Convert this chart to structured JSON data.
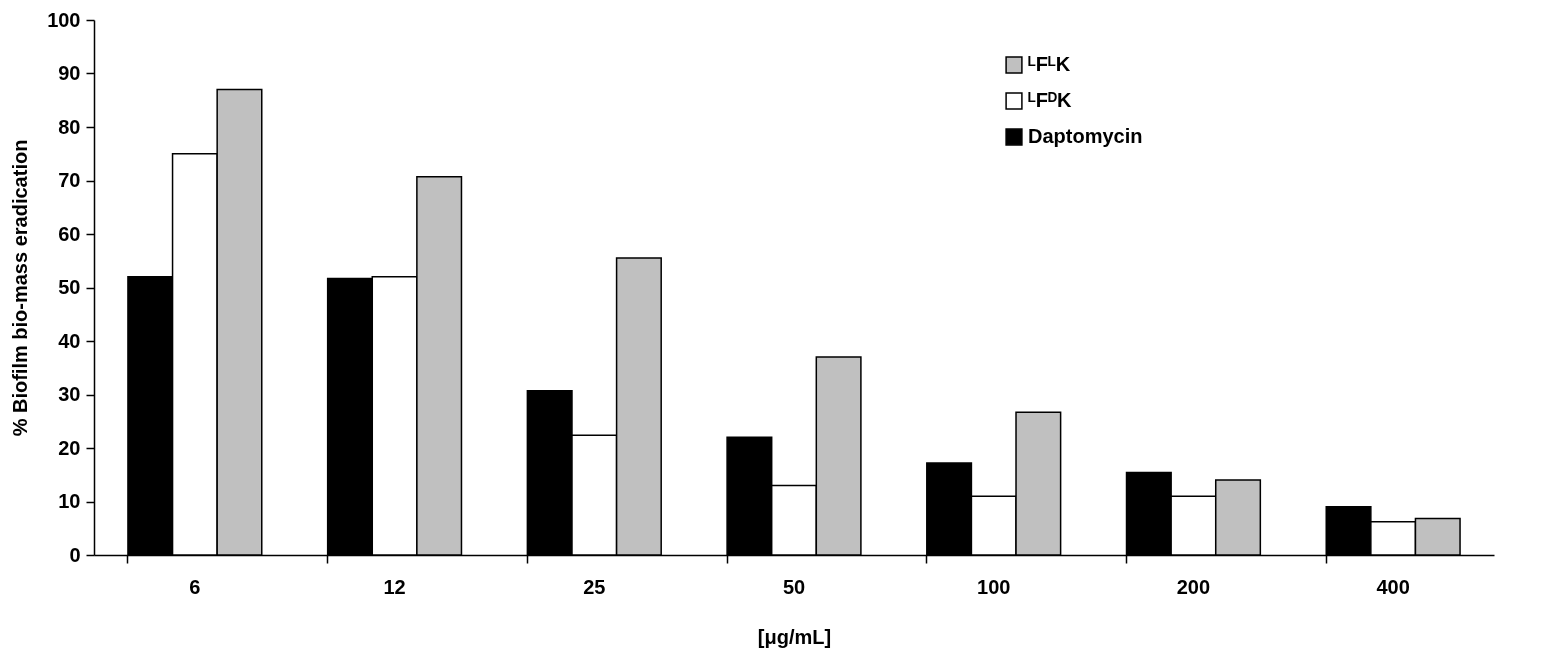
{
  "chart_data": {
    "type": "bar",
    "xlabel": "[μg/mL]",
    "ylabel": "% Biofilm bio-mass eradication",
    "categories": [
      "6",
      "12",
      "25",
      "50",
      "100",
      "200",
      "400"
    ],
    "series": [
      {
        "name": "Daptomycin",
        "color": "#000000",
        "values": [
          52,
          51.7,
          30.7,
          22,
          17.2,
          15.4,
          9
        ]
      },
      {
        "name": "ᴸFᴰK",
        "color": "#ffffff",
        "values": [
          75,
          52,
          22.4,
          13,
          11,
          11,
          6.2
        ]
      },
      {
        "name": "ᴸFᴸK",
        "color": "#c0c0c0",
        "values": [
          87,
          70.7,
          55.5,
          37,
          26.7,
          14,
          6.8
        ]
      }
    ],
    "ylim": [
      0,
      100
    ],
    "yticks": [
      0,
      10,
      20,
      30,
      40,
      50,
      60,
      70,
      80,
      90,
      100
    ],
    "grid": false,
    "legend": "top right"
  }
}
